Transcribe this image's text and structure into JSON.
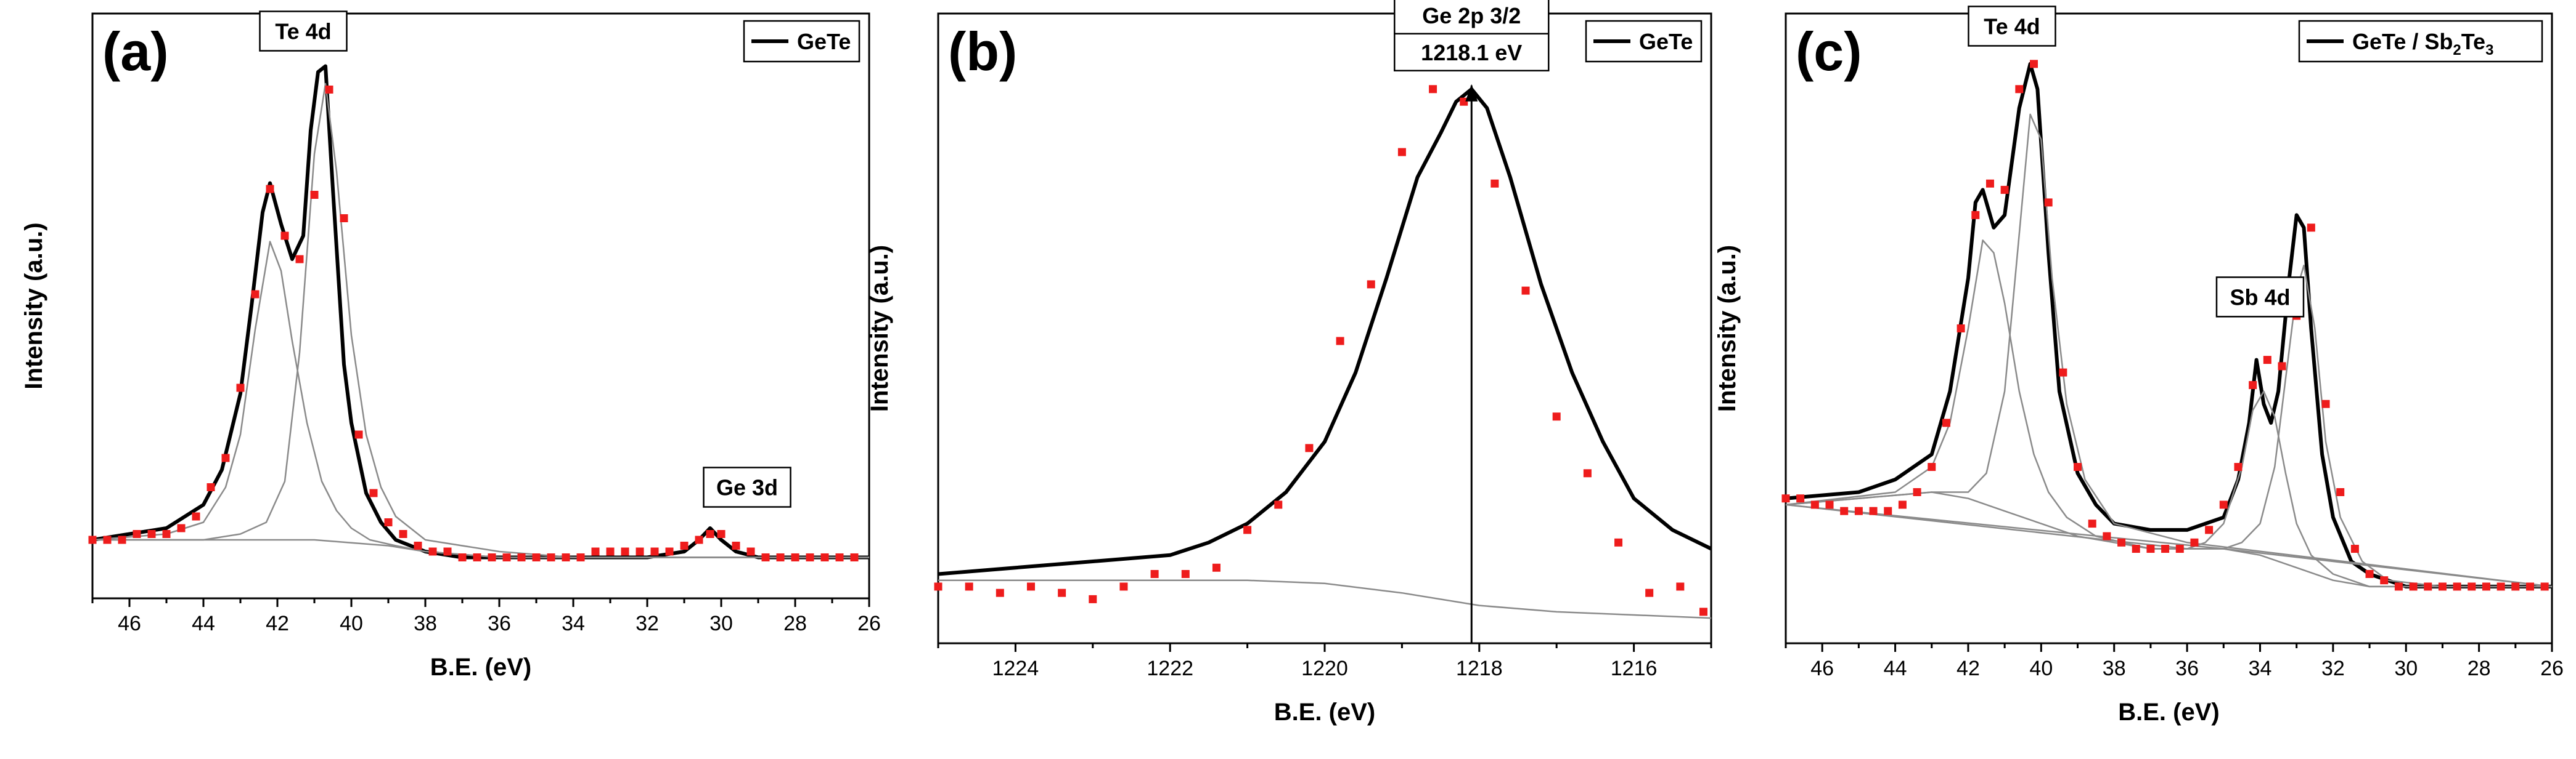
{
  "chart_data": [
    {
      "type": "line",
      "panel_label": "(a)",
      "title": "",
      "legend": [
        "GeTe"
      ],
      "legend_position": "top-right",
      "xlabel": "B.E. (eV)",
      "ylabel": "Intensity (a.u.)",
      "xlim": [
        47,
        26
      ],
      "ylim": [
        0,
        100
      ],
      "xticks": [
        "46",
        "44",
        "42",
        "40",
        "38",
        "36",
        "34",
        "32",
        "30",
        "28",
        "26"
      ],
      "annotations": [
        "Te 4d",
        "Ge 3d"
      ],
      "series": [
        {
          "name": "GeTe",
          "style": "fit-envelope",
          "x": [
            47,
            46,
            45,
            44,
            43.5,
            43,
            42.7,
            42.4,
            42.2,
            41.9,
            41.6,
            41.3,
            41.1,
            40.9,
            40.7,
            40.5,
            40.2,
            40,
            39.6,
            39.2,
            38.8,
            38.4,
            38,
            37,
            36,
            34,
            32,
            31,
            30.6,
            30.3,
            30,
            29.6,
            29,
            28,
            26
          ],
          "y": [
            10,
            11,
            12,
            16,
            22,
            35,
            50,
            66,
            71,
            64,
            58,
            62,
            80,
            90,
            91,
            70,
            40,
            30,
            18,
            13,
            10,
            9,
            8,
            7,
            7,
            7,
            7,
            8,
            10,
            12,
            10,
            8,
            7,
            7,
            7
          ]
        },
        {
          "name": "background",
          "style": "component",
          "x": [
            47,
            45,
            43,
            41,
            39,
            38,
            36,
            34,
            32,
            30,
            28,
            26
          ],
          "y": [
            10,
            10,
            10,
            10,
            9,
            8,
            7,
            7,
            7,
            7,
            7,
            7
          ]
        },
        {
          "name": "Te 4d 5/2",
          "style": "component",
          "x": [
            47,
            45,
            44,
            43.4,
            43,
            42.6,
            42.2,
            41.9,
            41.6,
            41.2,
            40.8,
            40.4,
            40,
            39.5,
            38.8,
            38,
            36,
            34,
            26
          ],
          "y": [
            10,
            11,
            13,
            19,
            28,
            46,
            61,
            56,
            44,
            30,
            20,
            15,
            12,
            10,
            9,
            8,
            7,
            7,
            7
          ]
        },
        {
          "name": "Te 4d 3/2",
          "style": "component",
          "x": [
            47,
            44,
            43,
            42.3,
            41.8,
            41.4,
            41,
            40.7,
            40.4,
            40,
            39.6,
            39.2,
            38.8,
            38,
            36,
            34,
            26
          ],
          "y": [
            10,
            10,
            11,
            13,
            20,
            42,
            76,
            88,
            73,
            45,
            28,
            19,
            14,
            10,
            8,
            7,
            7
          ]
        },
        {
          "name": "data",
          "style": "points",
          "x": [
            47,
            46.6,
            46.2,
            45.8,
            45.4,
            45,
            44.6,
            44.2,
            43.8,
            43.4,
            43,
            42.6,
            42.2,
            41.8,
            41.4,
            41,
            40.6,
            40.2,
            39.8,
            39.4,
            39,
            38.6,
            38.2,
            37.8,
            37.4,
            37,
            36.6,
            36.2,
            35.8,
            35.4,
            35,
            34.6,
            34.2,
            33.8,
            33.4,
            33,
            32.6,
            32.2,
            31.8,
            31.4,
            31,
            30.6,
            30.3,
            30,
            29.6,
            29.2,
            28.8,
            28.4,
            28,
            27.6,
            27.2,
            26.8,
            26.4
          ],
          "y": [
            10,
            10,
            10,
            11,
            11,
            11,
            12,
            14,
            19,
            24,
            36,
            52,
            70,
            62,
            58,
            69,
            87,
            65,
            28,
            18,
            13,
            11,
            9,
            8,
            8,
            7,
            7,
            7,
            7,
            7,
            7,
            7,
            7,
            7,
            8,
            8,
            8,
            8,
            8,
            8,
            9,
            10,
            11,
            11,
            9,
            8,
            7,
            7,
            7,
            7,
            7,
            7,
            7
          ]
        }
      ]
    },
    {
      "type": "line",
      "panel_label": "(b)",
      "title": "",
      "legend": [
        "GeTe"
      ],
      "legend_position": "top-right",
      "xlabel": "B.E. (eV)",
      "ylabel": "Intensity (a.u.)",
      "xlim": [
        1225,
        1215
      ],
      "ylim": [
        0,
        100
      ],
      "xticks": [
        "1224",
        "1222",
        "1220",
        "1218",
        "1216"
      ],
      "annotations": [
        "Ge 2p 3/2",
        "1218.1 eV"
      ],
      "peak_marker": 1218.1,
      "series": [
        {
          "name": "GeTe",
          "style": "fit-envelope",
          "x": [
            1225,
            1224,
            1223,
            1222,
            1221.5,
            1221,
            1220.5,
            1220,
            1219.6,
            1219.2,
            1218.8,
            1218.5,
            1218.3,
            1218.1,
            1217.9,
            1217.6,
            1217.2,
            1216.8,
            1216.4,
            1216,
            1215.5,
            1215
          ],
          "y": [
            11,
            12,
            13,
            14,
            16,
            19,
            24,
            32,
            43,
            58,
            74,
            81,
            86,
            88,
            85,
            74,
            57,
            43,
            32,
            23,
            18,
            15
          ]
        },
        {
          "name": "background",
          "style": "component",
          "x": [
            1225,
            1223,
            1221,
            1220,
            1219,
            1218,
            1217,
            1216,
            1215
          ],
          "y": [
            10,
            10,
            10,
            9.5,
            8,
            6,
            5,
            4.5,
            4
          ]
        },
        {
          "name": "data",
          "style": "points",
          "x": [
            1225,
            1224.6,
            1224.2,
            1223.8,
            1223.4,
            1223,
            1222.6,
            1222.2,
            1221.8,
            1221.4,
            1221,
            1220.6,
            1220.2,
            1219.8,
            1219.4,
            1219,
            1218.6,
            1218.2,
            1217.8,
            1217.4,
            1217,
            1216.6,
            1216.2,
            1215.8,
            1215.4,
            1215.1
          ],
          "y": [
            9,
            9,
            8,
            9,
            8,
            7,
            9,
            11,
            11,
            12,
            18,
            22,
            31,
            48,
            57,
            78,
            88,
            86,
            73,
            56,
            36,
            27,
            16,
            8,
            9,
            5
          ]
        }
      ]
    },
    {
      "type": "line",
      "panel_label": "(c)",
      "title": "",
      "legend": [
        "GeTe / Sb2Te3"
      ],
      "legend_position": "top-right",
      "xlabel": "B.E. (eV)",
      "ylabel": "Intensity (a.u.)",
      "xlim": [
        47,
        26
      ],
      "ylim": [
        0,
        100
      ],
      "xticks": [
        "46",
        "44",
        "42",
        "40",
        "38",
        "36",
        "34",
        "32",
        "30",
        "28",
        "26"
      ],
      "annotations": [
        "Te 4d",
        "Sb 4d"
      ],
      "series": [
        {
          "name": "GeTe / Sb2Te3",
          "style": "fit-envelope",
          "x": [
            47,
            45,
            44,
            43,
            42.5,
            42,
            41.8,
            41.6,
            41.3,
            41,
            40.6,
            40.3,
            40.1,
            39.8,
            39.5,
            39,
            38.5,
            38,
            37,
            36,
            35,
            34.6,
            34.3,
            34.1,
            33.9,
            33.7,
            33.5,
            33.2,
            33,
            32.8,
            32.6,
            32.3,
            32,
            31.5,
            31,
            30,
            28,
            26
          ],
          "y": [
            23,
            24,
            26,
            30,
            40,
            58,
            70,
            72,
            66,
            68,
            85,
            92,
            88,
            62,
            40,
            27,
            22,
            19,
            18,
            18,
            20,
            26,
            35,
            45,
            38,
            35,
            40,
            58,
            68,
            66,
            50,
            30,
            20,
            13,
            11,
            9,
            9,
            9
          ]
        },
        {
          "name": "background",
          "style": "component",
          "x": [
            47,
            45,
            43,
            42,
            41,
            40,
            39,
            38,
            37,
            36,
            35,
            34,
            33,
            32,
            31,
            30,
            28,
            26
          ],
          "y": [
            22,
            23,
            24,
            23,
            21,
            19,
            17,
            16,
            15,
            15,
            15,
            14,
            12,
            10,
            9,
            9,
            9,
            9
          ]
        },
        {
          "name": "Te 4d 5/2",
          "style": "component",
          "x": [
            47,
            44,
            43,
            42.5,
            42,
            41.6,
            41.3,
            41,
            40.6,
            40.2,
            39.8,
            39.3,
            38.5,
            37,
            35,
            26
          ],
          "y": [
            22,
            24,
            28,
            35,
            50,
            64,
            62,
            54,
            40,
            30,
            24,
            20,
            17,
            15,
            15,
            9
          ]
        },
        {
          "name": "Te 4d 3/2",
          "style": "component",
          "x": [
            47,
            43,
            42,
            41.5,
            41,
            40.6,
            40.3,
            40,
            39.7,
            39.3,
            38.8,
            38,
            36,
            26
          ],
          "y": [
            22,
            24,
            24,
            27,
            40,
            65,
            84,
            80,
            58,
            38,
            26,
            19,
            16,
            9
          ]
        },
        {
          "name": "Sb 4d 5/2",
          "style": "component",
          "x": [
            47,
            36,
            35.5,
            35,
            34.5,
            34.2,
            33.9,
            33.6,
            33.3,
            33,
            32.6,
            32,
            31,
            26
          ],
          "y": [
            22,
            15,
            16,
            19,
            28,
            37,
            40,
            36,
            27,
            19,
            14,
            11,
            9,
            9
          ]
        },
        {
          "name": "Sb 4d 3/2",
          "style": "component",
          "x": [
            47,
            35,
            34.5,
            34,
            33.6,
            33.3,
            33,
            32.8,
            32.5,
            32.2,
            31.8,
            31.2,
            30.5,
            29,
            26
          ],
          "y": [
            22,
            15,
            16,
            19,
            28,
            42,
            56,
            60,
            50,
            32,
            20,
            13,
            10,
            9,
            9
          ]
        },
        {
          "name": "data",
          "style": "points",
          "x": [
            47,
            46.6,
            46.2,
            45.8,
            45.4,
            45,
            44.6,
            44.2,
            43.8,
            43.4,
            43,
            42.6,
            42.2,
            41.8,
            41.4,
            41,
            40.6,
            40.2,
            39.8,
            39.4,
            39,
            38.6,
            38.2,
            37.8,
            37.4,
            37,
            36.6,
            36.2,
            35.8,
            35.4,
            35,
            34.6,
            34.2,
            33.8,
            33.4,
            33,
            32.6,
            32.2,
            31.8,
            31.4,
            31,
            30.6,
            30.2,
            29.8,
            29.4,
            29,
            28.6,
            28.2,
            27.8,
            27.4,
            27,
            26.6,
            26.2
          ],
          "y": [
            23,
            23,
            22,
            22,
            21,
            21,
            21,
            21,
            22,
            24,
            28,
            35,
            50,
            68,
            73,
            72,
            88,
            92,
            70,
            43,
            28,
            19,
            17,
            16,
            15,
            15,
            15,
            15,
            16,
            18,
            22,
            28,
            41,
            45,
            44,
            52,
            66,
            38,
            24,
            15,
            11,
            10,
            9,
            9,
            9,
            9,
            9,
            9,
            9,
            9,
            9,
            9,
            9
          ]
        }
      ]
    }
  ]
}
